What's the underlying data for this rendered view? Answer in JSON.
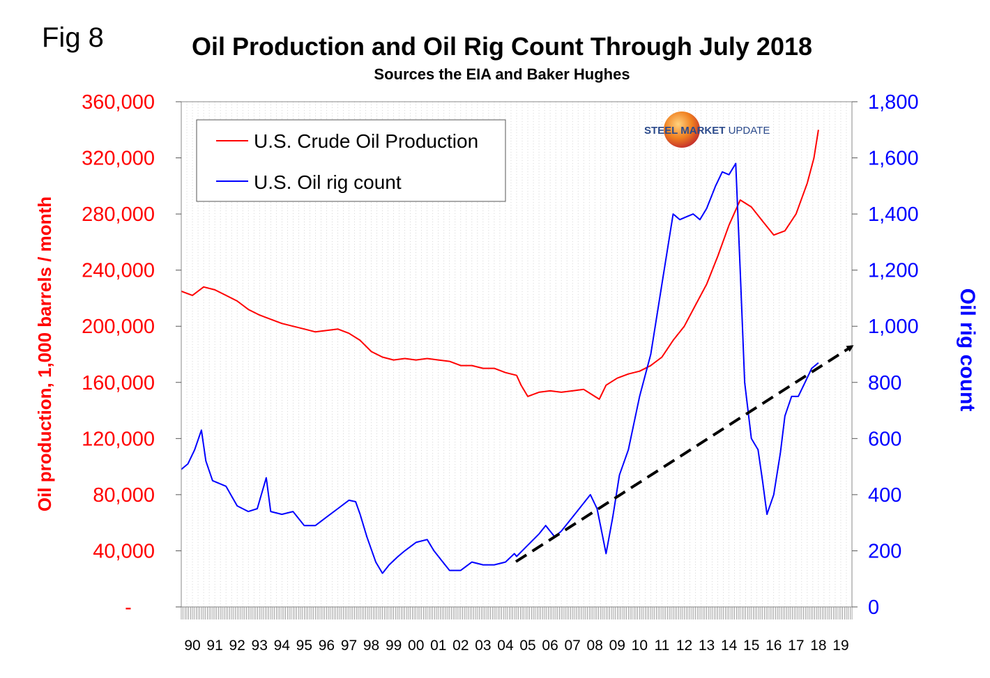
{
  "figure_label": "Fig 8",
  "brand": {
    "prefix": "STEEL ",
    "middle": "MARKET",
    "suffix": " UPDATE"
  },
  "colors": {
    "production": "#ff0000",
    "rig_count": "#0000ff",
    "trend": "#000000",
    "grid": "#bbbbbb"
  },
  "chart_data": {
    "type": "line",
    "title": "Oil Production and Oil Rig Count Through July 2018",
    "subtitle": "Sources the EIA and Baker Hughes",
    "ylabel": "Oil production, 1,000 barrels / month",
    "y2label": "Oil rig count",
    "ylim": [
      0,
      360000
    ],
    "y2lim": [
      0,
      1800
    ],
    "y_ticks": [
      "-",
      "40,000",
      "80,000",
      "120,000",
      "160,000",
      "200,000",
      "240,000",
      "280,000",
      "320,000",
      "360,000"
    ],
    "y2_ticks": [
      "0",
      "200",
      "400",
      "600",
      "800",
      "1,000",
      "1,200",
      "1,400",
      "1,600",
      "1,800"
    ],
    "x_tick_labels": [
      "90",
      "91",
      "92",
      "93",
      "94",
      "95",
      "96",
      "97",
      "98",
      "99",
      "00",
      "01",
      "02",
      "03",
      "04",
      "05",
      "06",
      "07",
      "08",
      "09",
      "10",
      "11",
      "12",
      "13",
      "14",
      "15",
      "16",
      "17",
      "18",
      "19"
    ],
    "xlim": [
      1990.0,
      2020.0
    ],
    "legend": {
      "position": "top-left",
      "items": [
        "U.S. Crude Oil Production",
        "U.S. Oil rig count"
      ]
    },
    "series": [
      {
        "name": "U.S. Crude Oil Production",
        "axis": "left",
        "x": [
          1990.0,
          1990.5,
          1991.0,
          1991.5,
          1992.0,
          1992.5,
          1993.0,
          1993.5,
          1994.0,
          1994.5,
          1995.0,
          1995.5,
          1996.0,
          1996.5,
          1997.0,
          1997.5,
          1998.0,
          1998.5,
          1999.0,
          1999.5,
          2000.0,
          2000.5,
          2001.0,
          2001.5,
          2002.0,
          2002.5,
          2003.0,
          2003.5,
          2004.0,
          2004.5,
          2005.0,
          2005.2,
          2005.5,
          2006.0,
          2006.5,
          2007.0,
          2007.5,
          2008.0,
          2008.5,
          2008.7,
          2009.0,
          2009.5,
          2010.0,
          2010.5,
          2011.0,
          2011.5,
          2012.0,
          2012.5,
          2013.0,
          2013.5,
          2014.0,
          2014.5,
          2015.0,
          2015.5,
          2016.0,
          2016.5,
          2017.0,
          2017.5,
          2018.0,
          2018.3,
          2018.5
        ],
        "values": [
          225000,
          222000,
          228000,
          226000,
          222000,
          218000,
          212000,
          208000,
          205000,
          202000,
          200000,
          198000,
          196000,
          197000,
          198000,
          195000,
          190000,
          182000,
          178000,
          176000,
          177000,
          176000,
          177000,
          176000,
          175000,
          172000,
          172000,
          170000,
          170000,
          167000,
          165000,
          158000,
          150000,
          153000,
          154000,
          153000,
          154000,
          155000,
          150000,
          148000,
          158000,
          163000,
          166000,
          168000,
          172000,
          178000,
          190000,
          200000,
          215000,
          230000,
          250000,
          272000,
          290000,
          285000,
          275000,
          265000,
          268000,
          280000,
          302000,
          320000,
          340000
        ]
      },
      {
        "name": "U.S. Oil rig count",
        "axis": "right",
        "x": [
          1990.0,
          1990.3,
          1990.6,
          1990.9,
          1991.1,
          1991.4,
          1991.7,
          1992.0,
          1992.5,
          1993.0,
          1993.4,
          1993.8,
          1994.0,
          1994.5,
          1995.0,
          1995.5,
          1996.0,
          1996.5,
          1997.0,
          1997.5,
          1997.8,
          1998.0,
          1998.3,
          1998.7,
          1999.0,
          1999.3,
          1999.7,
          2000.0,
          2000.5,
          2001.0,
          2001.3,
          2001.7,
          2002.0,
          2002.5,
          2003.0,
          2003.5,
          2004.0,
          2004.5,
          2004.9,
          2005.0,
          2005.5,
          2006.0,
          2006.3,
          2006.7,
          2007.0,
          2007.5,
          2008.0,
          2008.3,
          2008.6,
          2008.8,
          2009.0,
          2009.3,
          2009.6,
          2010.0,
          2010.5,
          2011.0,
          2011.5,
          2012.0,
          2012.3,
          2012.6,
          2012.9,
          2013.2,
          2013.5,
          2013.9,
          2014.2,
          2014.5,
          2014.8,
          2015.0,
          2015.2,
          2015.5,
          2015.8,
          2016.0,
          2016.2,
          2016.5,
          2016.8,
          2017.0,
          2017.3,
          2017.6,
          2017.9,
          2018.2,
          2018.5
        ],
        "values": [
          490,
          510,
          560,
          630,
          520,
          450,
          440,
          430,
          360,
          340,
          350,
          460,
          340,
          330,
          340,
          290,
          290,
          320,
          350,
          380,
          375,
          330,
          250,
          160,
          120,
          150,
          180,
          200,
          230,
          240,
          200,
          160,
          130,
          130,
          160,
          150,
          150,
          160,
          190,
          180,
          220,
          260,
          290,
          250,
          270,
          320,
          370,
          400,
          350,
          270,
          190,
          320,
          470,
          560,
          750,
          900,
          1150,
          1400,
          1380,
          1390,
          1400,
          1380,
          1420,
          1500,
          1550,
          1540,
          1580,
          1200,
          800,
          600,
          560,
          450,
          330,
          400,
          550,
          680,
          750,
          750,
          800,
          850,
          870
        ]
      }
    ]
  }
}
